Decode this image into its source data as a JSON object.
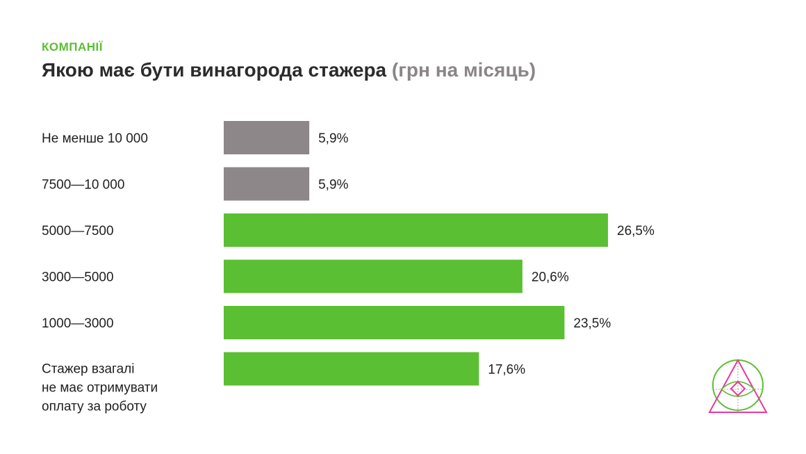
{
  "header": {
    "kicker": "КОМПАНІЇ",
    "title": "Якою має бути винагорода стажера",
    "title_unit": "(грн на місяць)"
  },
  "colors": {
    "accent": "#5bbf33",
    "muted_bar": "#8d878a",
    "text": "#1f1f1f",
    "logo_green": "#5bbf33",
    "logo_pink": "#e8399b"
  },
  "logo": {
    "icon": "triangle-circle-eye-logo"
  },
  "chart_data": {
    "type": "bar",
    "orientation": "horizontal",
    "categories": [
      [
        "Не менше 10 000"
      ],
      [
        "7500—10 000"
      ],
      [
        "5000—7500"
      ],
      [
        "3000—5000"
      ],
      [
        "1000—3000"
      ],
      [
        "Стажер взагалі",
        "не має отримувати",
        "оплату за роботу"
      ]
    ],
    "values": [
      5.9,
      5.9,
      26.5,
      20.6,
      23.5,
      17.6
    ],
    "value_labels": [
      "5,9%",
      "5,9%",
      "26,5%",
      "20,6%",
      "23,5%",
      "17,6%"
    ],
    "bar_colors": [
      "#8d878a",
      "#8d878a",
      "#5bbf33",
      "#5bbf33",
      "#5bbf33",
      "#5bbf33"
    ],
    "unit": "%",
    "xlim": [
      0,
      26.5
    ],
    "grid": false,
    "legend": "none"
  }
}
